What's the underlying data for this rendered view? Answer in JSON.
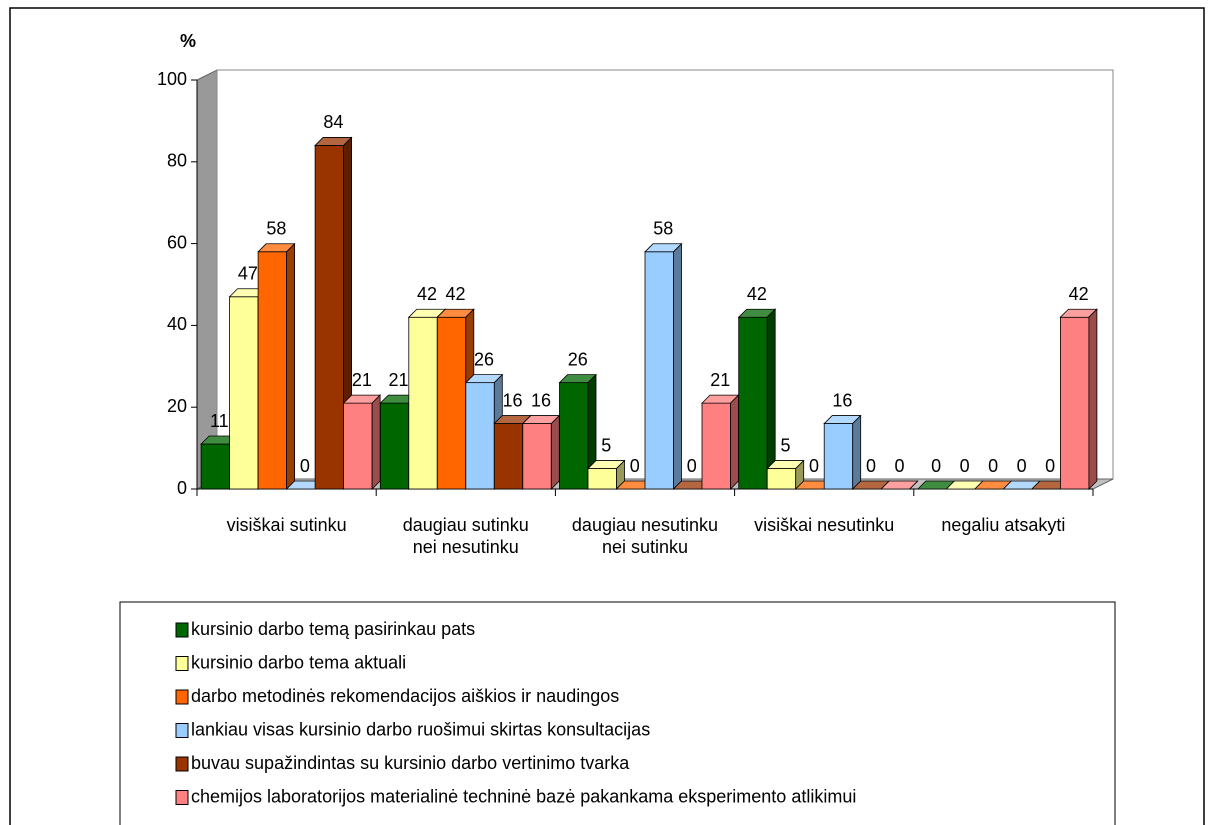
{
  "chart_data": {
    "type": "bar3d",
    "y_label": "%",
    "categories": [
      "visiškai sutinku",
      "daugiau sutinku nei nesutinku",
      "daugiau nesutinku nei sutinku",
      "visiškai nesutinku",
      "negaliu atsakyti"
    ],
    "series": [
      {
        "name": "kursinio darbo temą pasirinkau pats",
        "color": "#006600",
        "values": [
          11,
          21,
          26,
          42,
          0
        ]
      },
      {
        "name": "kursinio darbo tema aktuali",
        "color": "#ffff99",
        "values": [
          47,
          42,
          5,
          5,
          0
        ]
      },
      {
        "name": "darbo metodinės rekomendacijos aiškios ir naudingos",
        "color": "#ff6600",
        "values": [
          58,
          42,
          0,
          0,
          0
        ]
      },
      {
        "name": "lankiau visas kursinio darbo ruošimui skirtas konsultacijas",
        "color": "#99ccff",
        "values": [
          0,
          26,
          58,
          16,
          0
        ]
      },
      {
        "name": "buvau supažindintas su kursinio darbo vertinimo tvarka",
        "color": "#993300",
        "values": [
          84,
          16,
          0,
          0,
          0
        ]
      },
      {
        "name": "chemijos laboratorijos materialinė techninė bazė pakankama eksperimento atlikimui",
        "color": "#ff8080",
        "values": [
          21,
          16,
          21,
          0,
          42
        ]
      }
    ],
    "ylim": [
      0,
      100
    ],
    "yticks": [
      0,
      20,
      40,
      60,
      80,
      100
    ],
    "legend": "bottom"
  }
}
